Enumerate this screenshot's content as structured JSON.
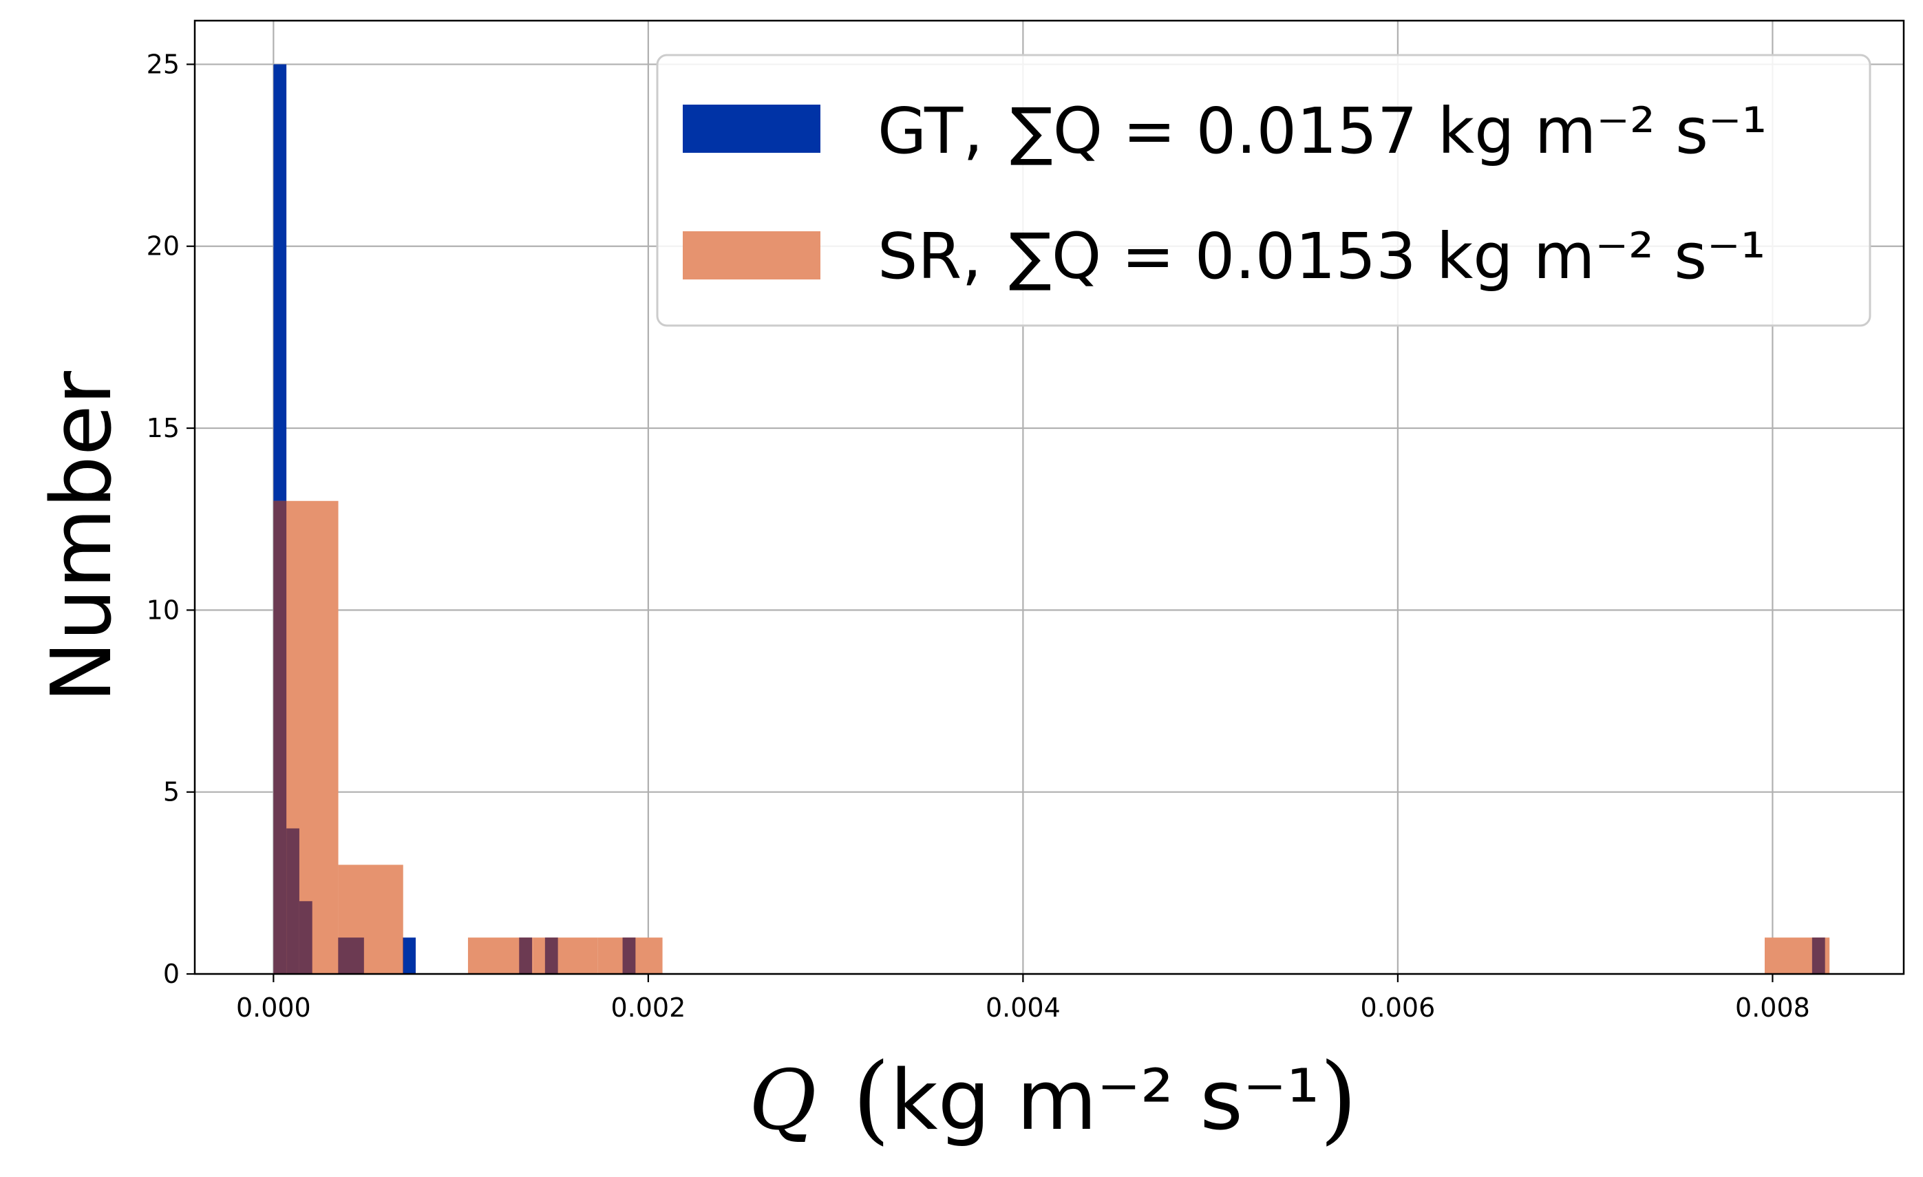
{
  "chart_data": {
    "type": "bar",
    "subtype": "overlaid-histogram",
    "xlabel": "Q (kg m⁻² s⁻¹)",
    "xlabel_math_symbol": "Q",
    "xlabel_unit": "kg m⁻² s⁻¹",
    "ylabel": "Number",
    "xlim": [
      -0.00042,
      0.0087
    ],
    "ylim": [
      0,
      26.2
    ],
    "xticks": [
      0.0,
      0.002,
      0.004,
      0.006,
      0.008
    ],
    "xtick_labels": [
      "0.000",
      "0.002",
      "0.004",
      "0.006",
      "0.008"
    ],
    "yticks": [
      0,
      5,
      10,
      15,
      20,
      25
    ],
    "ytick_labels": [
      "0",
      "5",
      "10",
      "15",
      "20",
      "25"
    ],
    "grid": true,
    "legend_position": "top-right",
    "series": [
      {
        "name": "GT",
        "legend_prefix": "GT,",
        "sum_label": "∑Q = 0.0157 kg m⁻² s⁻¹",
        "sum_value": "0.0157",
        "color": "#0033a6",
        "bins": [
          {
            "x0": 0.0,
            "x1": 6.9e-05,
            "count": 25
          },
          {
            "x0": 6.9e-05,
            "x1": 0.000138,
            "count": 4
          },
          {
            "x0": 0.000138,
            "x1": 0.000207,
            "count": 2
          },
          {
            "x0": 0.000345,
            "x1": 0.000483,
            "count": 1
          },
          {
            "x0": 0.00069,
            "x1": 0.000759,
            "count": 1
          },
          {
            "x0": 0.001311,
            "x1": 0.00138,
            "count": 1
          },
          {
            "x0": 0.001449,
            "x1": 0.001518,
            "count": 1
          },
          {
            "x0": 0.001863,
            "x1": 0.001932,
            "count": 1
          },
          {
            "x0": 0.008211,
            "x1": 0.00828,
            "count": 1
          }
        ]
      },
      {
        "name": "SR",
        "legend_prefix": "SR,",
        "sum_label": "∑Q = 0.0153 kg m⁻² s⁻¹",
        "sum_value": "0.0153",
        "color": "#e6936f",
        "bins": [
          {
            "x0": 0.0,
            "x1": 0.000346,
            "count": 13
          },
          {
            "x0": 0.000346,
            "x1": 0.000692,
            "count": 3
          },
          {
            "x0": 0.001038,
            "x1": 0.001384,
            "count": 1
          },
          {
            "x0": 0.001384,
            "x1": 0.00173,
            "count": 1
          },
          {
            "x0": 0.00173,
            "x1": 0.002076,
            "count": 1
          },
          {
            "x0": 0.007958,
            "x1": 0.008304,
            "count": 1
          }
        ]
      }
    ],
    "overlap_color": "#6c3a52"
  }
}
